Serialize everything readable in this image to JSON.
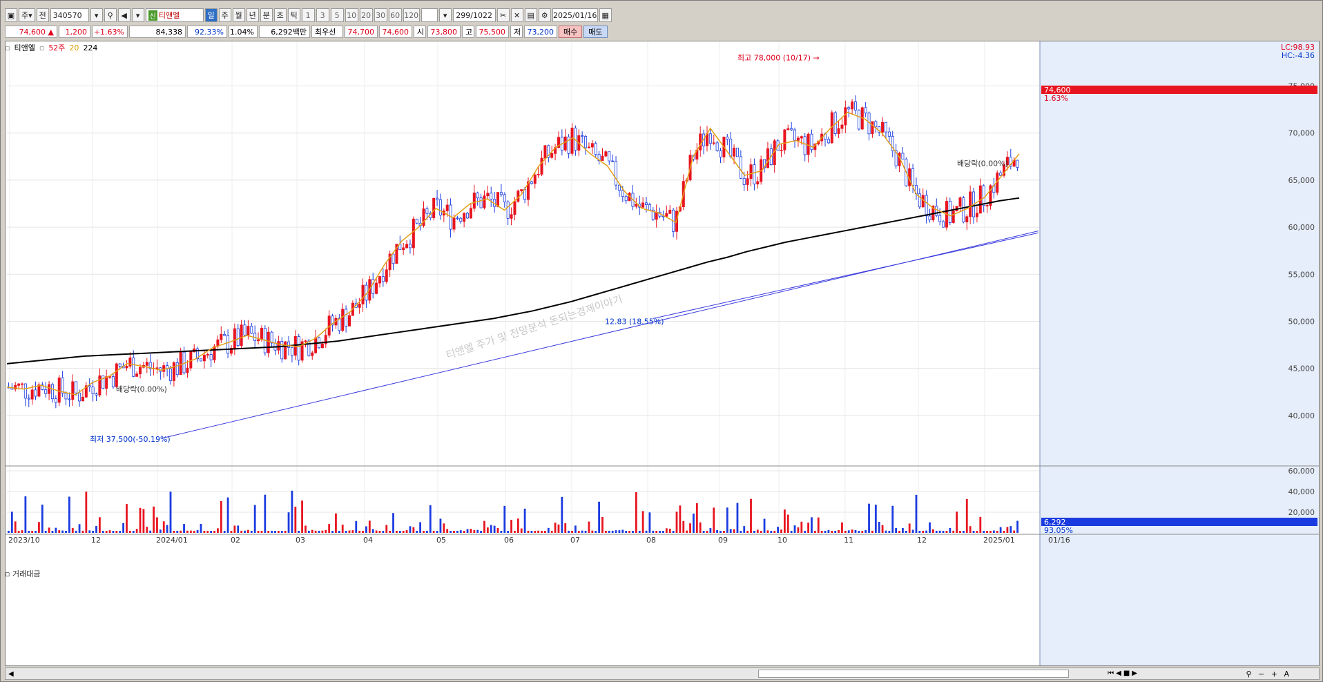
{
  "toolbar": {
    "period_type": "주",
    "market": "전",
    "code": "340570",
    "stock_badge": "신",
    "stock_name": "티앤엘",
    "periods": [
      "일",
      "주",
      "월",
      "년",
      "분",
      "초",
      "틱"
    ],
    "selected_period": "일",
    "intervals": [
      "1",
      "3",
      "5",
      "10",
      "20",
      "30",
      "60",
      "120"
    ],
    "count": "299/1022",
    "date": "2025/01/16"
  },
  "quote": {
    "price": "74,600 ▲",
    "change": "1,200",
    "change_pct": "+1.63%",
    "volume": "84,338",
    "volume_ratio": "92.33%",
    "turnover": "1.04%",
    "amount": "6,292백만",
    "best_label": "최우선",
    "best_ask": "74,700",
    "best_bid": "74,600",
    "open_label": "시",
    "open": "73,800",
    "high_label": "고",
    "high": "75,500",
    "low_label": "저",
    "low": "73,200",
    "buy_label": "매수",
    "sell_label": "매도"
  },
  "legend": {
    "name": "티앤엘",
    "ma1": "52주",
    "ma2": "20",
    "ma3": "224",
    "volume_title": "거래대금"
  },
  "colors": {
    "up": "#e8141f",
    "down": "#1a3be0",
    "ma20": "#e4a016",
    "ma224": "#000000",
    "trend": "#3a3ae0",
    "accent": "#2f6fc5"
  },
  "icons": [
    "search-icon",
    "speaker-icon",
    "settings-icon",
    "calendar-icon",
    "save-icon",
    "scissors-icon",
    "zoom-in-icon",
    "zoom-out-icon"
  ],
  "chart_data": {
    "type": "candlestick",
    "title": "티앤엘",
    "watermark": "티앤엘 주가 및 전망분석 돈되는경제이야기",
    "price_axis": {
      "ylim": [
        35000,
        79000
      ],
      "ticks": [
        "75,000",
        "70,000",
        "65,000",
        "60,000",
        "55,000",
        "50,000",
        "45,000",
        "40,000"
      ]
    },
    "volume_axis": {
      "ticks": [
        "60,000",
        "40,000",
        "20,000"
      ]
    },
    "x_labels": [
      "2023/10",
      "12",
      "2024/01",
      "02",
      "03",
      "04",
      "05",
      "06",
      "07",
      "08",
      "09",
      "10",
      "11",
      "12",
      "2025/01",
      "01/16"
    ],
    "last_price_label": "74,600",
    "last_change_label": "1.63%",
    "last_volume_label": "6,292",
    "last_volume_pct": "93.05%",
    "lc_label": "LC:98.93",
    "hc_label": "HC:-4.36",
    "annotations": {
      "high": "최고 78,000 (10/17)",
      "low": "최저 37,500(-50.19%)",
      "low2": "12.83 (18.55%)",
      "div1": "배당락(0.00%)",
      "div2": "배당락(0.00%)"
    },
    "ma_20": [
      43000,
      42800,
      43200,
      42600,
      42200,
      43500,
      44200,
      45500,
      45200,
      44800,
      45300,
      46000,
      47200,
      47800,
      48500,
      48000,
      47500,
      47300,
      48200,
      49800,
      51000,
      53000,
      56000,
      58500,
      60000,
      62000,
      61000,
      62500,
      63000,
      61800,
      63500,
      66500,
      68500,
      69500,
      67800,
      66500,
      63800,
      62000,
      61500,
      60500,
      67500,
      70500,
      68000,
      65500,
      66000,
      68800,
      69200,
      68500,
      70500,
      72200,
      71500,
      70000,
      67500,
      63500,
      62000,
      61200,
      62000,
      63200,
      65500,
      67800
    ],
    "ma_224": [
      45500,
      45700,
      45900,
      46100,
      46300,
      46400,
      46500,
      46600,
      46700,
      46800,
      46900,
      47000,
      47100,
      47200,
      47300,
      47500,
      47700,
      47900,
      48200,
      48500,
      48800,
      49100,
      49400,
      49700,
      50000,
      50300,
      50700,
      51100,
      51600,
      52100,
      52700,
      53300,
      53900,
      54500,
      55100,
      55700,
      56300,
      56800,
      57400,
      57900,
      58400,
      58800,
      59200,
      59600,
      60000,
      60400,
      60800,
      61200,
      61600,
      62000,
      62400,
      62800,
      63100
    ],
    "trend_start": [
      37600,
      0.145
    ],
    "trend_end": [
      59500,
      1.0
    ]
  }
}
